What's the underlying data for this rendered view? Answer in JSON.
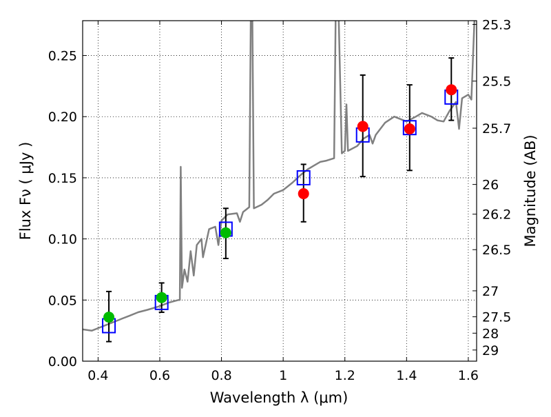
{
  "chart_data": {
    "type": "scatter",
    "title": "",
    "xlabel": "Wavelength  λ (μm)",
    "ylabel": "Flux  Fν  ( μJy )",
    "ylabel_right": "Magnitude (AB)",
    "xlim": [
      0.35,
      1.627
    ],
    "ylim": [
      0,
      0.2785
    ],
    "grid": true,
    "x_ticks": [
      0.4,
      0.6,
      0.8,
      1.0,
      1.2,
      1.4,
      1.6
    ],
    "x_tick_labels": [
      "0.4",
      "0.6",
      "0.8",
      "1",
      "1.2",
      "1.4",
      "1.6"
    ],
    "y_ticks": [
      0,
      0.05,
      0.1,
      0.15,
      0.2,
      0.25
    ],
    "y_tick_labels": [
      "0.00",
      "0.05",
      "0.10",
      "0.15",
      "0.20",
      "0.25"
    ],
    "right_ticks": [
      25.3,
      25.5,
      25.7,
      26,
      26.2,
      26.5,
      27,
      27.5,
      28,
      29
    ],
    "right_tick_labels": [
      "25.3",
      "25.5",
      "25.7",
      "26",
      "26.2",
      "26.5",
      "27",
      "27.5",
      "28",
      "29"
    ],
    "colors": {
      "spectrum": "#808080",
      "model": "#0000ff",
      "green": "#00bb00",
      "red": "#ff0000",
      "error": "#000000"
    },
    "spectrum": [
      [
        0.35,
        0.026
      ],
      [
        0.38,
        0.025
      ],
      [
        0.4,
        0.027
      ],
      [
        0.43,
        0.03
      ],
      [
        0.46,
        0.033
      ],
      [
        0.48,
        0.035
      ],
      [
        0.5,
        0.037
      ],
      [
        0.53,
        0.04
      ],
      [
        0.56,
        0.042
      ],
      [
        0.6,
        0.045
      ],
      [
        0.63,
        0.048
      ],
      [
        0.66,
        0.05
      ],
      [
        0.665,
        0.05
      ],
      [
        0.668,
        0.159
      ],
      [
        0.672,
        0.06
      ],
      [
        0.68,
        0.075
      ],
      [
        0.69,
        0.065
      ],
      [
        0.7,
        0.09
      ],
      [
        0.71,
        0.07
      ],
      [
        0.72,
        0.095
      ],
      [
        0.735,
        0.1
      ],
      [
        0.74,
        0.085
      ],
      [
        0.76,
        0.108
      ],
      [
        0.78,
        0.11
      ],
      [
        0.79,
        0.095
      ],
      [
        0.8,
        0.115
      ],
      [
        0.82,
        0.12
      ],
      [
        0.85,
        0.121
      ],
      [
        0.86,
        0.114
      ],
      [
        0.87,
        0.122
      ],
      [
        0.89,
        0.126
      ],
      [
        0.895,
        0.28
      ],
      [
        0.9,
        0.28
      ],
      [
        0.905,
        0.125
      ],
      [
        0.93,
        0.128
      ],
      [
        0.95,
        0.132
      ],
      [
        0.97,
        0.137
      ],
      [
        1.0,
        0.14
      ],
      [
        1.03,
        0.146
      ],
      [
        1.06,
        0.153
      ],
      [
        1.08,
        0.157
      ],
      [
        1.1,
        0.16
      ],
      [
        1.12,
        0.163
      ],
      [
        1.14,
        0.164
      ],
      [
        1.165,
        0.166
      ],
      [
        1.17,
        0.28
      ],
      [
        1.18,
        0.28
      ],
      [
        1.19,
        0.17
      ],
      [
        1.2,
        0.172
      ],
      [
        1.205,
        0.21
      ],
      [
        1.21,
        0.172
      ],
      [
        1.24,
        0.176
      ],
      [
        1.26,
        0.182
      ],
      [
        1.28,
        0.185
      ],
      [
        1.29,
        0.178
      ],
      [
        1.3,
        0.185
      ],
      [
        1.33,
        0.195
      ],
      [
        1.36,
        0.2
      ],
      [
        1.4,
        0.196
      ],
      [
        1.43,
        0.2
      ],
      [
        1.45,
        0.203
      ],
      [
        1.48,
        0.2
      ],
      [
        1.5,
        0.197
      ],
      [
        1.52,
        0.196
      ],
      [
        1.54,
        0.205
      ],
      [
        1.56,
        0.212
      ],
      [
        1.57,
        0.19
      ],
      [
        1.58,
        0.215
      ],
      [
        1.6,
        0.218
      ],
      [
        1.61,
        0.214
      ],
      [
        1.62,
        0.28
      ]
    ],
    "model_points": {
      "x": [
        0.435,
        0.606,
        0.814,
        1.066,
        1.258,
        1.41,
        1.545
      ],
      "y": [
        0.029,
        0.048,
        0.108,
        0.15,
        0.185,
        0.191,
        0.216
      ]
    },
    "observed_points": [
      {
        "x": 0.435,
        "y": 0.036,
        "err_lo": 0.016,
        "err_hi": 0.057,
        "color": "green"
      },
      {
        "x": 0.606,
        "y": 0.052,
        "err_lo": 0.04,
        "err_hi": 0.064,
        "color": "green"
      },
      {
        "x": 0.814,
        "y": 0.105,
        "err_lo": 0.084,
        "err_hi": 0.125,
        "color": "green"
      },
      {
        "x": 1.066,
        "y": 0.137,
        "err_lo": 0.114,
        "err_hi": 0.161,
        "color": "red"
      },
      {
        "x": 1.258,
        "y": 0.192,
        "err_lo": 0.151,
        "err_hi": 0.234,
        "color": "red"
      },
      {
        "x": 1.41,
        "y": 0.19,
        "err_lo": 0.156,
        "err_hi": 0.226,
        "color": "red"
      },
      {
        "x": 1.545,
        "y": 0.222,
        "err_lo": 0.197,
        "err_hi": 0.248,
        "color": "red"
      }
    ]
  }
}
